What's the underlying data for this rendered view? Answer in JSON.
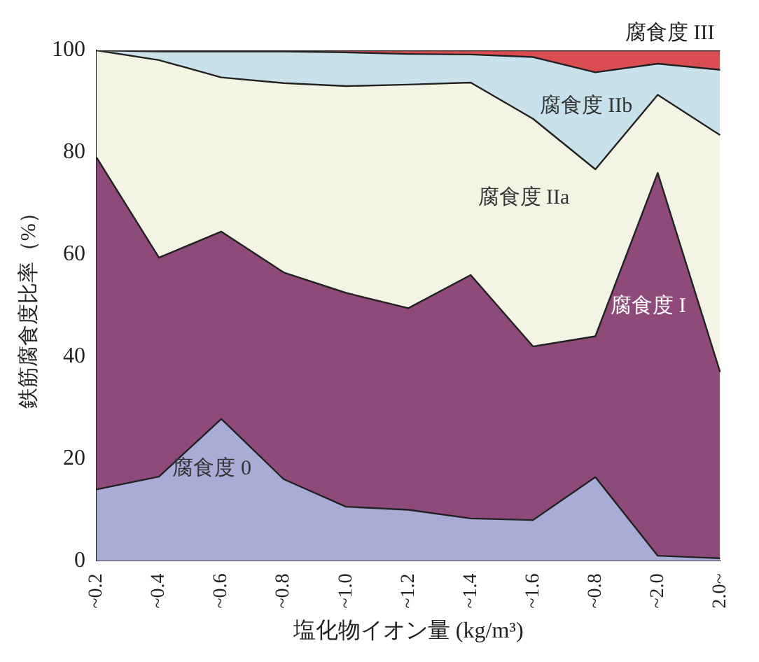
{
  "chart_data": {
    "type": "area",
    "stacked": true,
    "xlabel": "塩化物イオン量 (kg/m³)",
    "ylabel": "鉄筋腐食度比率（%）",
    "categories": [
      "~0.2",
      "~0.4",
      "~0.6",
      "~0.8",
      "~1.0",
      "~1.2",
      "~1.4",
      "~1.6",
      "~0.8",
      "~2.0",
      "2.0~"
    ],
    "series": [
      {
        "name": "腐食度 0",
        "color": "#a9acd6",
        "values": [
          14,
          16.5,
          27.8,
          16,
          10.6,
          10,
          8.3,
          8,
          16.4,
          1,
          0.5
        ]
      },
      {
        "name": "腐食度 I",
        "color": "#8e4a78",
        "values": [
          65,
          42.9,
          36.7,
          40.5,
          41.9,
          39.5,
          47.7,
          34,
          27.6,
          75,
          36.5
        ]
      },
      {
        "name": "腐食度 IIa",
        "color": "#f4f4e4",
        "values": [
          21,
          38.7,
          30.2,
          37.1,
          40.5,
          43.8,
          37.7,
          44.6,
          32.7,
          15.3,
          46.4
        ]
      },
      {
        "name": "腐食度 IIb",
        "color": "#c9e1ea",
        "values": [
          0,
          1.7,
          5.1,
          6.2,
          6.6,
          6,
          5.5,
          12.1,
          19,
          6.1,
          12.8
        ]
      },
      {
        "name": "腐食度 III",
        "color": "#d94c50",
        "values": [
          0,
          0.2,
          0.2,
          0.2,
          0.4,
          0.7,
          0.8,
          1.3,
          4.3,
          2.6,
          3.8
        ]
      }
    ],
    "ylim": [
      0,
      100
    ],
    "yticks": [
      0,
      20,
      40,
      60,
      80,
      100
    ],
    "grid": false,
    "legend": false
  }
}
